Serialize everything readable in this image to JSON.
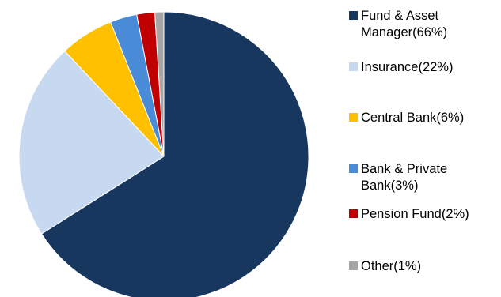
{
  "chart_data": {
    "type": "pie",
    "title": "",
    "start_angle_deg": 0,
    "direction": "clockwise",
    "legend_position": "right",
    "slices": [
      {
        "label_lines": [
          "Fund & Asset",
          "Manager(66%)"
        ],
        "value": 66,
        "color": "#17375e"
      },
      {
        "label_lines": [
          "Insurance(22%)"
        ],
        "value": 22,
        "color": "#c6d9f1"
      },
      {
        "label_lines": [
          "Central Bank(6%)"
        ],
        "value": 6,
        "color": "#ffc000"
      },
      {
        "label_lines": [
          "Bank & Private",
          "Bank(3%)"
        ],
        "value": 3,
        "color": "#4a8bd8"
      },
      {
        "label_lines": [
          "Pension Fund(2%)"
        ],
        "value": 2,
        "color": "#c00000"
      },
      {
        "label_lines": [
          "Other(1%)"
        ],
        "value": 1,
        "color": "#a6a6a6"
      }
    ]
  }
}
